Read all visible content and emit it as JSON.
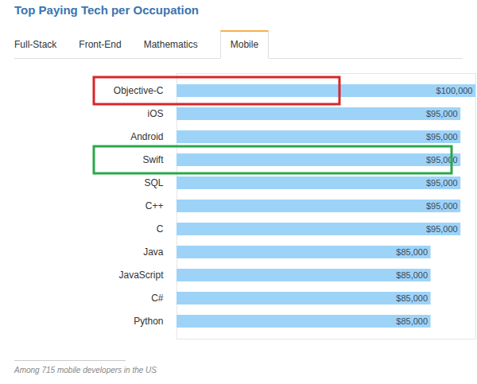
{
  "tabs": {
    "items": [
      "Full-Stack",
      "Front-End",
      "Mathematics",
      "Mobile"
    ],
    "active": "Mobile"
  },
  "chart_data": {
    "type": "bar",
    "orientation": "horizontal",
    "title": "Top Paying Tech per Occupation",
    "caption": "Among 715 mobile developers in the US",
    "categories": [
      "Objective-C",
      "iOS",
      "Android",
      "Swift",
      "SQL",
      "C++",
      "C",
      "Java",
      "JavaScript",
      "C#",
      "Python"
    ],
    "values": [
      100000,
      95000,
      95000,
      95000,
      95000,
      95000,
      95000,
      85000,
      85000,
      85000,
      85000
    ],
    "value_labels": [
      "$100,000",
      "$95,000",
      "$95,000",
      "$95,000",
      "$95,000",
      "$95,000",
      "$95,000",
      "$85,000",
      "$85,000",
      "$85,000",
      "$85,000"
    ],
    "data_labels": true,
    "color": "#9ed3f8",
    "xlim": [
      0,
      100000
    ],
    "xticks": [],
    "tick_labels": "y",
    "grid": false,
    "highlights": [
      {
        "category": "Objective-C",
        "color": "#d7262b"
      },
      {
        "category": "Swift",
        "color": "#2aa84a"
      }
    ]
  }
}
